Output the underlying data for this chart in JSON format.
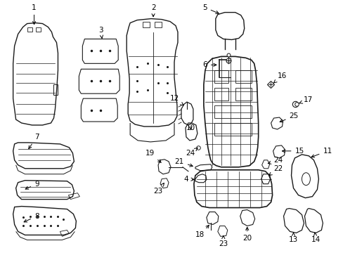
{
  "bg_color": "#ffffff",
  "fig_width": 4.89,
  "fig_height": 3.6,
  "dpi": 100,
  "line_color": "#1a1a1a",
  "text_color": "#000000",
  "font_size": 7.5
}
